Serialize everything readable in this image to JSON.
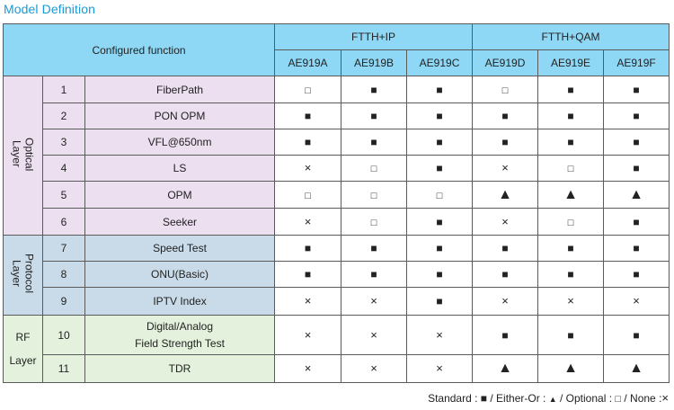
{
  "title": "Model Definition",
  "header": {
    "configured_function": "Configured function",
    "groups": [
      "FTTH+IP",
      "FTTH+QAM"
    ],
    "models": [
      "AE919A",
      "AE919B",
      "AE919C",
      "AE919D",
      "AE919E",
      "AE919F"
    ]
  },
  "layers": [
    {
      "line1": "Optical",
      "line2": "Layer"
    },
    {
      "line1": "Protocol",
      "line2": "Layer"
    },
    {
      "line1": "RF",
      "line2": "Layer"
    }
  ],
  "symbols": {
    "standard": "■",
    "either": "▲",
    "optional": "□",
    "none": "×"
  },
  "rows": [
    {
      "num": "1",
      "name": "FiberPath",
      "cells": [
        "□",
        "■",
        "■",
        "□",
        "■",
        "■"
      ]
    },
    {
      "num": "2",
      "name": "PON OPM",
      "cells": [
        "■",
        "■",
        "■",
        "■",
        "■",
        "■"
      ]
    },
    {
      "num": "3",
      "name": "VFL@650nm",
      "cells": [
        "■",
        "■",
        "■",
        "■",
        "■",
        "■"
      ]
    },
    {
      "num": "4",
      "name": "LS",
      "cells": [
        "×",
        "□",
        "■",
        "×",
        "□",
        "■"
      ]
    },
    {
      "num": "5",
      "name": "OPM",
      "cells": [
        "□",
        "□",
        "□",
        "▲",
        "▲",
        "▲"
      ]
    },
    {
      "num": "6",
      "name": "Seeker",
      "cells": [
        "×",
        "□",
        "■",
        "×",
        "□",
        "■"
      ]
    },
    {
      "num": "7",
      "name": "Speed Test",
      "cells": [
        "■",
        "■",
        "■",
        "■",
        "■",
        "■"
      ]
    },
    {
      "num": "8",
      "name": "ONU(Basic)",
      "cells": [
        "■",
        "■",
        "■",
        "■",
        "■",
        "■"
      ]
    },
    {
      "num": "9",
      "name": "IPTV Index",
      "cells": [
        "×",
        "×",
        "■",
        "×",
        "×",
        "×"
      ]
    },
    {
      "num": "10",
      "name_line1": "Digital/Analog",
      "name_line2": "Field Strength Test",
      "cells": [
        "×",
        "×",
        "×",
        "■",
        "■",
        "■"
      ]
    },
    {
      "num": "11",
      "name": "TDR",
      "cells": [
        "×",
        "×",
        "×",
        "▲",
        "▲",
        "▲"
      ]
    }
  ],
  "legend": {
    "standard_label": "Standard :",
    "standard_sym": "■",
    "either_label": "/ Either-Or :",
    "either_sym": "▲",
    "optional_label": "/ Optional :",
    "optional_sym": "□",
    "none_label": "/ None :",
    "none_sym": "×"
  }
}
